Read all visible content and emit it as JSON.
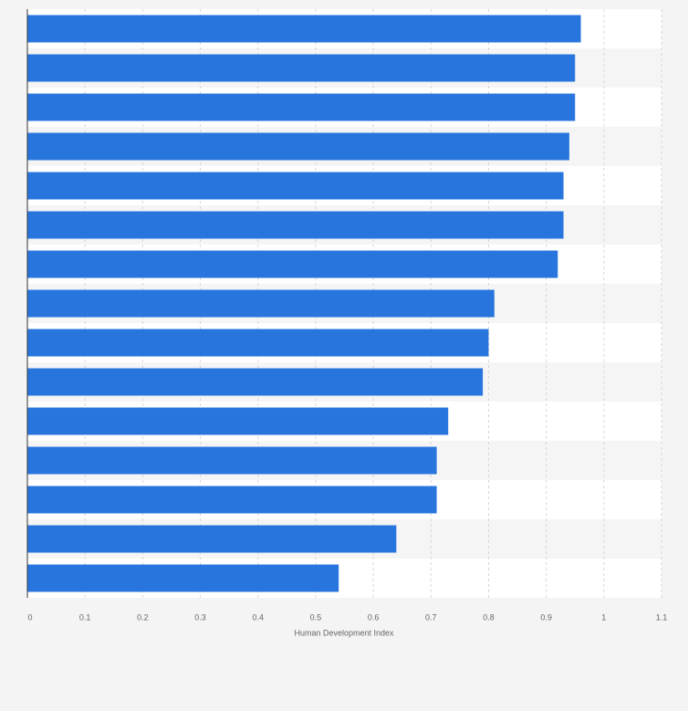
{
  "chart_data": {
    "type": "bar",
    "orientation": "horizontal",
    "x_label": "Human Development Index",
    "categories": [
      null,
      null,
      null,
      null,
      null,
      null,
      null,
      null,
      null,
      null,
      null,
      null,
      null,
      null,
      null
    ],
    "values": [
      0.96,
      0.95,
      0.95,
      0.94,
      0.93,
      0.93,
      0.92,
      0.81,
      0.8,
      0.79,
      0.73,
      0.71,
      0.71,
      0.64,
      0.54
    ],
    "color": "#2876dd",
    "xlim": [
      0,
      1.1
    ],
    "xticks": [
      0,
      0.1,
      0.2,
      0.3,
      0.4,
      0.5,
      0.6,
      0.7,
      0.8,
      0.9,
      1,
      1.1
    ],
    "grid": true
  }
}
